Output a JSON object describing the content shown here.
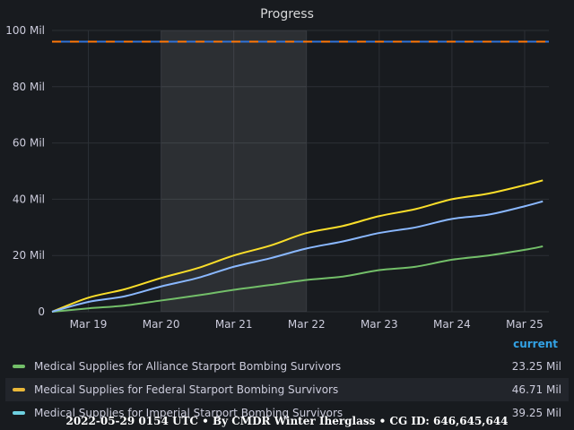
{
  "panel": {
    "title": "Progress"
  },
  "chart_data": {
    "type": "line",
    "title": "Progress",
    "ylim": [
      0,
      100000000
    ],
    "y_ticks": [
      "0",
      "20 Mil",
      "40 Mil",
      "60 Mil",
      "80 Mil",
      "100 Mil"
    ],
    "y_tick_values": [
      0,
      20000000,
      40000000,
      60000000,
      80000000,
      100000000
    ],
    "x_range": [
      "2022-03-18T12:00",
      "2022-03-25T08:00"
    ],
    "x_ticks": [
      "Mar 19",
      "Mar 20",
      "Mar 21",
      "Mar 22",
      "Mar 23",
      "Mar 24",
      "Mar 25"
    ],
    "x_tick_values": [
      "2022-03-19",
      "2022-03-20",
      "2022-03-21",
      "2022-03-22",
      "2022-03-23",
      "2022-03-24",
      "2022-03-25"
    ],
    "highlight_region": [
      "2022-03-20",
      "2022-03-22"
    ],
    "threshold": {
      "value": 96000000,
      "colors": [
        "#ff780a",
        "#3274d9"
      ]
    },
    "grid": true,
    "legend_placement": "bottom",
    "x": [
      "2022-03-18T12:00",
      "2022-03-19T00:00",
      "2022-03-19T12:00",
      "2022-03-20T00:00",
      "2022-03-20T12:00",
      "2022-03-21T00:00",
      "2022-03-21T12:00",
      "2022-03-22T00:00",
      "2022-03-22T12:00",
      "2022-03-23T00:00",
      "2022-03-23T12:00",
      "2022-03-24T00:00",
      "2022-03-24T12:00",
      "2022-03-25T00:00",
      "2022-03-25T06:00"
    ],
    "series": [
      {
        "name": "Medical Supplies for Alliance Starport Bombing Survivors",
        "color": "#73bf69",
        "values": [
          0,
          1200000,
          2200000,
          4000000,
          5800000,
          7800000,
          9500000,
          11300000,
          12500000,
          14800000,
          16000000,
          18500000,
          20000000,
          22000000,
          23250000
        ]
      },
      {
        "name": "Medical Supplies for Federal Starport Bombing Survivors",
        "color": "#fade2a",
        "values": [
          0,
          5000000,
          8000000,
          12000000,
          15500000,
          20000000,
          23500000,
          28000000,
          30500000,
          34000000,
          36500000,
          40000000,
          42000000,
          45000000,
          46710000
        ]
      },
      {
        "name": "Medical Supplies for Imperial Starport Bombing Survivors",
        "color": "#8ab8ff",
        "values": [
          0,
          3500000,
          5500000,
          9000000,
          12000000,
          16000000,
          19000000,
          22500000,
          25000000,
          28000000,
          30000000,
          33000000,
          34500000,
          37500000,
          39250000
        ]
      }
    ]
  },
  "legend": {
    "header": "current",
    "rows": [
      {
        "name": "Medical Supplies for Alliance Starport Bombing Survivors",
        "value": "23.25 Mil",
        "color": "#73bf69"
      },
      {
        "name": "Medical Supplies for Federal Starport Bombing Survivors",
        "value": "46.71 Mil",
        "color": "#eab839"
      },
      {
        "name": "Medical Supplies for Imperial Starport Bombing Survivors",
        "value": "39.25 Mil",
        "color": "#6ed0e0"
      }
    ]
  },
  "footer": "2022-05-29 0154 UTC • By CMDR Winter Iherglass • CG ID: 646,645,644"
}
